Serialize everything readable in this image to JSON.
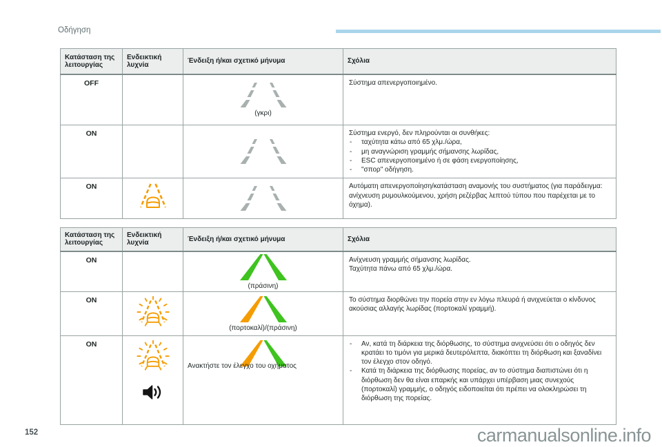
{
  "page": {
    "section_label": "Οδήγηση",
    "page_number": "152",
    "watermark": "carmanualsonline.info"
  },
  "colors": {
    "accent_bar": "#a9d5eb",
    "orange": "#f59c00",
    "green": "#3fc31f",
    "lane_gray": "#a8b0b0",
    "header_bg": "#eceeee",
    "border": "#98a2a2"
  },
  "table_headers": [
    "Κατάσταση της λειτουργίας",
    "Ενδεικτική λυχνία",
    "Ένδειξη ή/και σχετικό μήνυμα",
    "Σχόλια"
  ],
  "tables": [
    {
      "rows": [
        {
          "state": "OFF",
          "indicator_icons": [],
          "display": {
            "icon": "lane-lines-gray-dashed",
            "caption": "(γκρι)",
            "message": ""
          },
          "comments": {
            "lines": [
              "Σύστημα απενεργοποιημένο."
            ],
            "bullets": []
          }
        },
        {
          "state": "ON",
          "indicator_icons": [],
          "display": {
            "icon": "lane-lines-gray-dashed",
            "caption": "",
            "message": ""
          },
          "comments": {
            "lines": [
              "Σύστημα ενεργό, δεν πληρούνται οι συνθήκες:"
            ],
            "bullets": [
              "ταχύτητα κάτω από 65 χλμ./ώρα,",
              "μη αναγνώριση γραμμής σήμανσης λωρίδας,",
              "ESC απενεργοποιημένο ή σε φάση ενεργοποίησης,",
              "\"σπορ\" οδήγηση."
            ]
          }
        },
        {
          "state": "ON",
          "indicator_icons": [
            "lane-departure-warning"
          ],
          "display": {
            "icon": "lane-lines-gray-dashed",
            "caption": "",
            "message": ""
          },
          "comments": {
            "lines": [
              "Αυτόματη απενεργοποίηση/κατάσταση αναμονής του συστήματος (για παράδειγμα: ανίχνευση ρυμουλκούμενου, χρήση ρεζέρβας λεπτού τύπου που παρέχεται με το όχημα)."
            ],
            "bullets": []
          }
        }
      ]
    },
    {
      "rows": [
        {
          "state": "ON",
          "indicator_icons": [],
          "display": {
            "icon": "lane-lines-green",
            "caption": "(πράσινη)",
            "message": ""
          },
          "comments": {
            "lines": [
              "Ανίχνευση γραμμής σήμανσης λωρίδας.",
              "Ταχύτητα πάνω από 65 χλμ./ώρα."
            ],
            "bullets": []
          }
        },
        {
          "state": "ON",
          "indicator_icons": [
            "lane-departure-warning-flashing"
          ],
          "display": {
            "icon": "lane-lines-orange-green",
            "caption": "(πορτοκαλί)/(πράσινη)",
            "message": ""
          },
          "comments": {
            "lines": [
              "Το σύστημα διορθώνει την πορεία στην εν λόγω πλευρά ή ανιχνεύεται ο κίνδυνος ακούσιας αλλαγής λωρίδας (πορτοκαλί γραμμή)."
            ],
            "bullets": []
          }
        },
        {
          "state": "ON",
          "indicator_icons": [
            "lane-departure-warning-flashing",
            "speaker"
          ],
          "display": {
            "icon": "lane-lines-orange-green",
            "caption": "",
            "message": "Ανακτήστε τον έλεγχο του οχήματος"
          },
          "comments": {
            "lines": [],
            "bullets": [
              "Αν, κατά τη διάρκεια της διόρθωσης, το σύστημα ανιχνεύσει ότι ο οδηγός δεν κρατάει το τιμόνι για μερικά δευτερόλεπτα, διακόπτει τη διόρθωση και ξαναδίνει τον έλεγχο στον οδηγό.",
              "Κατά τη διάρκεια της διόρθωσης πορείας, αν το σύστημα διαπιστώνει ότι η διόρθωση δεν θα είναι επαρκής και υπάρχει υπέρβαση μιας συνεχούς (πορτοκαλί) γραμμής, ο οδηγός ειδοποιείται ότι πρέπει να ολοκληρώσει τη διόρθωση της πορείας."
            ]
          }
        }
      ]
    }
  ]
}
